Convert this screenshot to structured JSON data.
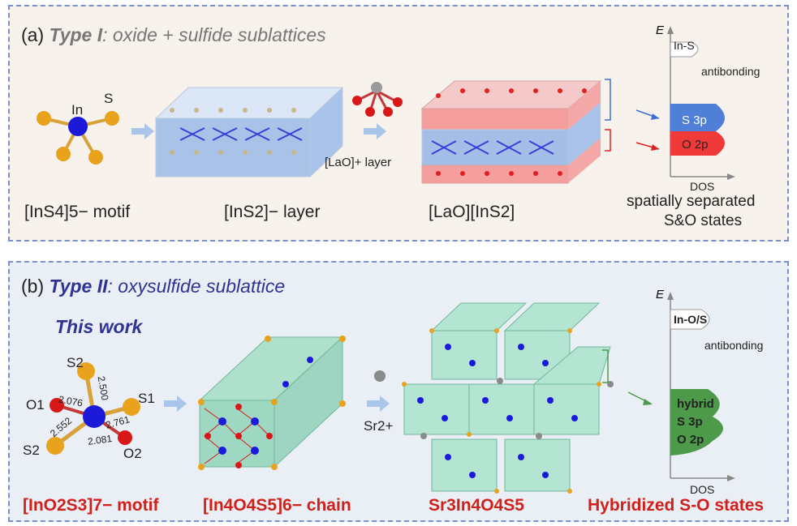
{
  "panel_a": {
    "letter": "(a)",
    "type": "Type I",
    "subtitle": ": oxide + sulfide sublattices",
    "motif_atom_in": "In",
    "motif_atom_s": "S",
    "motif_caption": "[InS4]5− motif",
    "layer_caption": "[InS2]− layer",
    "lao_layer": "[LaO]+ layer",
    "compound_caption": "[LaO][InS2]",
    "dos": {
      "energy_axis": "E",
      "x_axis": "DOS",
      "antibonding_state": "In-S",
      "antibonding_label": "antibonding",
      "state_s": "S 3p",
      "state_o": "O 2p",
      "caption_line1": "spatially separated",
      "caption_line2": "S&O states"
    }
  },
  "panel_b": {
    "letter": "(b)",
    "type": "Type II",
    "subtitle": ":  oxysulfide sublattice",
    "this_work": "This work",
    "atoms": {
      "s2_top": "S2",
      "s1": "S1",
      "o1": "O1",
      "s2_bottom": "S2",
      "o2": "O2"
    },
    "bond_lengths": {
      "top": "2.500",
      "o1": "2.076",
      "s1": "2.761",
      "s2": "2.552",
      "o2": "2.081"
    },
    "sr_label": "Sr2+",
    "motif_caption": "[InO2S3]7− motif",
    "chain_caption": "[In4O4S5]6− chain",
    "compound_caption": "Sr3In4O4S5",
    "dos": {
      "energy_axis": "E",
      "x_axis": "DOS",
      "antibonding_state": "In-O/S",
      "antibonding_label": "antibonding",
      "hybrid_line1": "hybrid",
      "hybrid_line2": "S 3p",
      "hybrid_line3": "O 2p"
    },
    "states_caption": "Hybridized  S-O states"
  },
  "colors": {
    "indium": "#1a1ad8",
    "sulfur": "#e8a21c",
    "oxygen": "#d81818",
    "strontium": "#8a8a8a",
    "s_state": "#3a6fd6",
    "o_state": "#e02020",
    "hybrid_state": "#4c9a4a",
    "accent_blue": "#2f3394",
    "accent_red": "#d0201a"
  }
}
